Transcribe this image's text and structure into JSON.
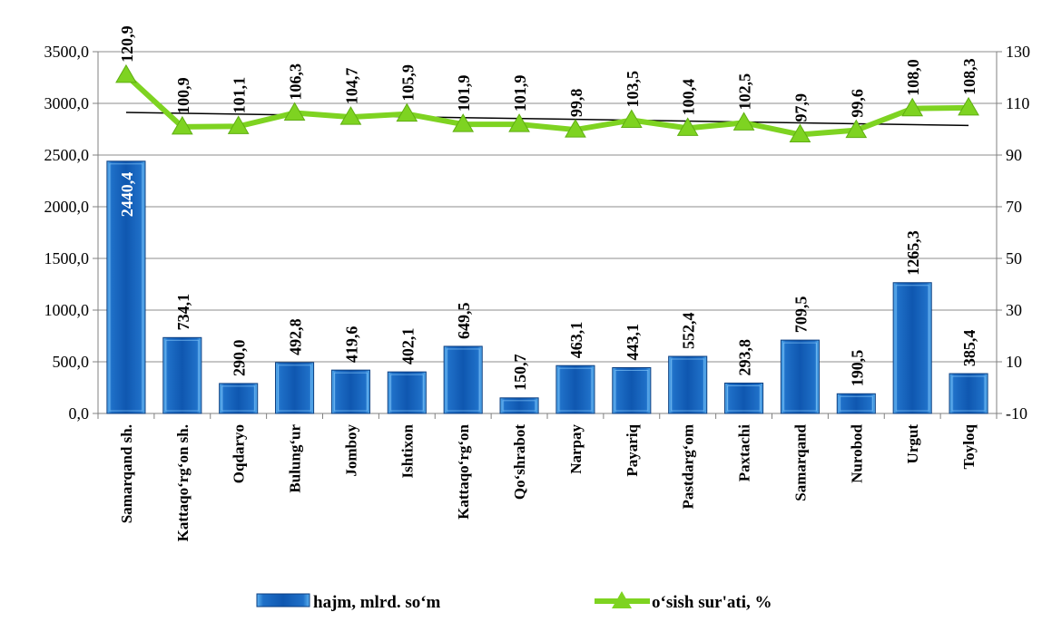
{
  "chart_data": {
    "type": "bar",
    "categories": [
      "Samarqand sh.",
      "Kattaqo‘rg‘on sh.",
      "Oqdaryo",
      "Bulung‘ur",
      "Jomboy",
      "Ishtixon",
      "Kattaqo‘rg‘on",
      "Qo‘shrabot",
      "Narpay",
      "Payariq",
      "Pastdarg‘om",
      "Paxtachi",
      "Samarqand",
      "Nurobod",
      "Urgut",
      "Toyloq"
    ],
    "series": [
      {
        "name": "hajm, mlrd. so‘m",
        "type": "bar",
        "axis": "left",
        "color": "#1a5fb4",
        "values": [
          2440.4,
          734.1,
          290.0,
          492.8,
          419.6,
          402.1,
          649.5,
          150.7,
          463.1,
          443.1,
          552.4,
          293.8,
          709.5,
          190.5,
          1265.3,
          385.4
        ],
        "labels": [
          "2440,4",
          "734,1",
          "290,0",
          "492,8",
          "419,6",
          "402,1",
          "649,5",
          "150,7",
          "463,1",
          "443,1",
          "552,4",
          "293,8",
          "709,5",
          "190,5",
          "1265,3",
          "385,4"
        ]
      },
      {
        "name": "o‘sish sur'ati, %",
        "type": "line",
        "axis": "right",
        "color": "#7ed321",
        "values": [
          120.9,
          100.9,
          101.1,
          106.3,
          104.7,
          105.9,
          101.9,
          101.9,
          99.8,
          103.5,
          100.4,
          102.5,
          97.9,
          99.6,
          108.0,
          108.3
        ],
        "labels": [
          "120,9",
          "100,9",
          "101,1",
          "106,3",
          "104,7",
          "105,9",
          "101,9",
          "101,9",
          "99,8",
          "103,5",
          "100,4",
          "102,5",
          "97,9",
          "99,6",
          "108,0",
          "108,3"
        ]
      }
    ],
    "trendline": {
      "series": "o‘sish sur'ati, %",
      "kind": "linear",
      "color": "#000000"
    },
    "left_axis": {
      "ylim": [
        0,
        3500
      ],
      "ticks": [
        0,
        500,
        1000,
        1500,
        2000,
        2500,
        3000,
        3500
      ],
      "tick_labels": [
        "0,0",
        "500,0",
        "1000,0",
        "1500,0",
        "2000,0",
        "2500,0",
        "3000,0",
        "3500,0"
      ]
    },
    "right_axis": {
      "ylim": [
        -10,
        130
      ],
      "ticks": [
        -10,
        10,
        30,
        50,
        70,
        90,
        110,
        130
      ],
      "tick_labels": [
        "-10",
        "10",
        "30",
        "50",
        "70",
        "90",
        "110",
        "130"
      ]
    },
    "grid": true,
    "legend": "bottom"
  }
}
